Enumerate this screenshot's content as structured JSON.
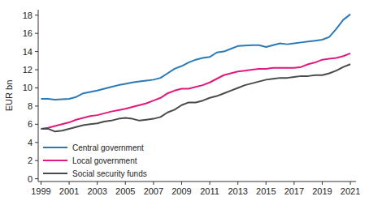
{
  "chart_data": {
    "type": "line",
    "y_label": "EUR bn",
    "x": [
      1999,
      1999.5,
      2000,
      2000.5,
      2001,
      2001.5,
      2002,
      2002.5,
      2003,
      2003.5,
      2004,
      2004.5,
      2005,
      2005.5,
      2006,
      2006.5,
      2007,
      2007.5,
      2008,
      2008.5,
      2009,
      2009.5,
      2010,
      2010.5,
      2011,
      2011.5,
      2012,
      2012.5,
      2013,
      2013.5,
      2014,
      2014.5,
      2015,
      2015.5,
      2016,
      2016.5,
      2017,
      2017.5,
      2018,
      2018.5,
      2019,
      2019.5,
      2020,
      2020.5,
      2021
    ],
    "series": [
      {
        "name": "Central government",
        "color": "#2a7ab9",
        "values": [
          8.8,
          8.8,
          8.7,
          8.75,
          8.8,
          9.0,
          9.4,
          9.55,
          9.7,
          9.9,
          10.1,
          10.3,
          10.45,
          10.6,
          10.7,
          10.8,
          10.9,
          11.1,
          11.6,
          12.1,
          12.4,
          12.8,
          13.1,
          13.3,
          13.4,
          13.9,
          14.0,
          14.3,
          14.6,
          14.65,
          14.7,
          14.7,
          14.5,
          14.7,
          14.9,
          14.8,
          14.9,
          15.0,
          15.1,
          15.2,
          15.3,
          15.6,
          16.5,
          17.5,
          18.1
        ]
      },
      {
        "name": "Local government",
        "color": "#e0197c",
        "values": [
          5.5,
          5.6,
          5.8,
          6.0,
          6.2,
          6.5,
          6.7,
          6.9,
          7.0,
          7.2,
          7.4,
          7.55,
          7.7,
          7.9,
          8.1,
          8.3,
          8.6,
          8.9,
          9.4,
          9.7,
          9.9,
          9.9,
          10.1,
          10.3,
          10.6,
          11.0,
          11.4,
          11.6,
          11.8,
          11.9,
          12.0,
          12.1,
          12.1,
          12.2,
          12.2,
          12.2,
          12.2,
          12.3,
          12.6,
          12.8,
          13.1,
          13.2,
          13.3,
          13.5,
          13.8
        ]
      },
      {
        "name": "Social security funds",
        "color": "#4a4a4a",
        "values": [
          5.5,
          5.5,
          5.2,
          5.3,
          5.5,
          5.7,
          5.9,
          6.0,
          6.1,
          6.3,
          6.4,
          6.6,
          6.7,
          6.6,
          6.4,
          6.5,
          6.6,
          6.8,
          7.3,
          7.6,
          8.1,
          8.4,
          8.4,
          8.6,
          8.9,
          9.1,
          9.4,
          9.7,
          10.0,
          10.3,
          10.5,
          10.7,
          10.9,
          11.0,
          11.1,
          11.1,
          11.2,
          11.3,
          11.3,
          11.4,
          11.4,
          11.6,
          11.9,
          12.3,
          12.6
        ]
      }
    ],
    "xlim": [
      1998.8,
      2021.4
    ],
    "xticks": [
      1999,
      2001,
      2003,
      2005,
      2007,
      2009,
      2011,
      2013,
      2015,
      2017,
      2019,
      2021
    ],
    "ylim": [
      -0.3,
      18.6
    ],
    "yticks": [
      0,
      2,
      4,
      6,
      8,
      10,
      12,
      14,
      16,
      18
    ],
    "grid": false,
    "legend": "lower left"
  }
}
